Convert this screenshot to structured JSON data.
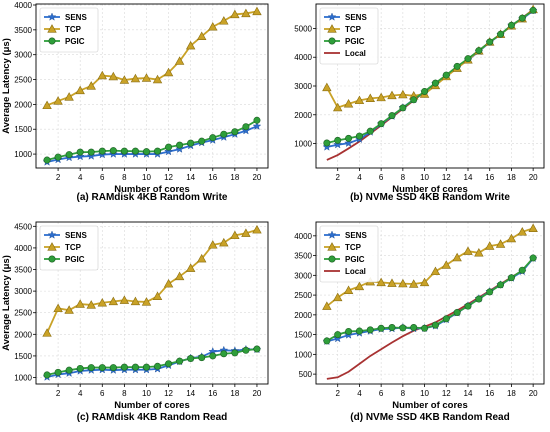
{
  "colors": {
    "SENS": "#2e6fcf",
    "TCP": "#c9a227",
    "PGIC": "#2e9e3a",
    "Local": "#a83232",
    "grid": "#d9d9d9"
  },
  "chart_data": [
    {
      "type": "line",
      "caption": "(a) RAMdisk 4KB Random Write",
      "xlabel": "Number of cores",
      "ylabel": "Average Latency (μs)",
      "x": [
        1,
        2,
        3,
        4,
        5,
        6,
        7,
        8,
        9,
        10,
        11,
        12,
        13,
        14,
        15,
        16,
        17,
        18,
        19,
        20
      ],
      "xticks": [
        2,
        4,
        6,
        8,
        10,
        12,
        14,
        16,
        18,
        20
      ],
      "yticks": [
        1000,
        1500,
        2000,
        2500,
        3000,
        3500,
        4000
      ],
      "xlim": [
        0,
        21
      ],
      "ylim": [
        720,
        4020
      ],
      "grid": true,
      "legend_position": "top-left",
      "series": [
        {
          "name": "SENS",
          "values": [
            840,
            890,
            930,
            950,
            960,
            990,
            1000,
            1000,
            1000,
            1000,
            1000,
            1050,
            1100,
            1170,
            1230,
            1280,
            1340,
            1400,
            1470,
            1560
          ]
        },
        {
          "name": "TCP",
          "values": [
            1980,
            2070,
            2150,
            2280,
            2370,
            2580,
            2560,
            2490,
            2520,
            2530,
            2500,
            2640,
            2870,
            3180,
            3370,
            3560,
            3680,
            3810,
            3830,
            3870
          ]
        },
        {
          "name": "PGIC",
          "values": [
            880,
            940,
            990,
            1040,
            1040,
            1060,
            1070,
            1060,
            1060,
            1050,
            1060,
            1140,
            1180,
            1220,
            1260,
            1330,
            1400,
            1450,
            1550,
            1680
          ]
        }
      ]
    },
    {
      "type": "line",
      "caption": "(b) NVMe SSD 4KB Random Write",
      "xlabel": "Number of cores",
      "ylabel": "",
      "x": [
        1,
        2,
        3,
        4,
        5,
        6,
        7,
        8,
        9,
        10,
        11,
        12,
        13,
        14,
        15,
        16,
        17,
        18,
        19,
        20
      ],
      "xticks": [
        2,
        4,
        6,
        8,
        10,
        12,
        14,
        16,
        18,
        20
      ],
      "yticks": [
        1000,
        2000,
        3000,
        4000,
        5000
      ],
      "xlim": [
        0,
        21
      ],
      "ylim": [
        150,
        5850
      ],
      "grid": true,
      "legend_position": "top-left",
      "series": [
        {
          "name": "SENS",
          "values": [
            880,
            960,
            1010,
            1150,
            1400,
            1680,
            1950,
            2250,
            2530,
            2790,
            3080,
            3330,
            3650,
            3900,
            4200,
            4520,
            4790,
            5110,
            5330,
            5620
          ]
        },
        {
          "name": "TCP",
          "values": [
            2950,
            2250,
            2380,
            2500,
            2570,
            2600,
            2670,
            2700,
            2660,
            2720,
            3020,
            3330,
            3620,
            3910,
            4220,
            4530,
            4800,
            5090,
            5340,
            5660
          ]
        },
        {
          "name": "PGIC",
          "values": [
            1020,
            1110,
            1180,
            1260,
            1430,
            1690,
            1970,
            2240,
            2520,
            2810,
            3100,
            3380,
            3680,
            3950,
            4230,
            4530,
            4800,
            5110,
            5360,
            5630
          ]
        },
        {
          "name": "Local",
          "values": [
            430,
            600,
            830,
            1070,
            1350,
            1630,
            1920,
            2210,
            2500,
            2800,
            3090,
            3370,
            3660,
            3940,
            4230,
            4520,
            4800,
            5090,
            5370,
            5650
          ]
        }
      ]
    },
    {
      "type": "line",
      "caption": "(c) RAMdisk 4KB Random Read",
      "xlabel": "Number of cores",
      "ylabel": "Average Latency (μs)",
      "x": [
        1,
        2,
        3,
        4,
        5,
        6,
        7,
        8,
        9,
        10,
        11,
        12,
        13,
        14,
        15,
        16,
        17,
        18,
        19,
        20
      ],
      "xticks": [
        2,
        4,
        6,
        8,
        10,
        12,
        14,
        16,
        18,
        20
      ],
      "yticks": [
        1000,
        1500,
        2000,
        2500,
        3000,
        3500,
        4000,
        4500
      ],
      "xlim": [
        0,
        21
      ],
      "ylim": [
        850,
        4600
      ],
      "grid": true,
      "legend_position": "top-left",
      "series": [
        {
          "name": "SENS",
          "values": [
            1010,
            1070,
            1100,
            1150,
            1170,
            1180,
            1170,
            1180,
            1180,
            1180,
            1200,
            1280,
            1370,
            1450,
            1480,
            1600,
            1630,
            1620,
            1650,
            1650
          ]
        },
        {
          "name": "TCP",
          "values": [
            2030,
            2600,
            2560,
            2700,
            2680,
            2730,
            2760,
            2790,
            2760,
            2750,
            2880,
            3170,
            3340,
            3530,
            3750,
            4070,
            4120,
            4290,
            4340,
            4420
          ]
        },
        {
          "name": "PGIC",
          "values": [
            1060,
            1120,
            1170,
            1210,
            1230,
            1230,
            1230,
            1240,
            1240,
            1240,
            1260,
            1320,
            1380,
            1440,
            1460,
            1500,
            1550,
            1570,
            1630,
            1660
          ]
        }
      ]
    },
    {
      "type": "line",
      "caption": "(d) NVMe SSD 4KB Random Read",
      "xlabel": "Number of cores",
      "ylabel": "",
      "x": [
        1,
        2,
        3,
        4,
        5,
        6,
        7,
        8,
        9,
        10,
        11,
        12,
        13,
        14,
        15,
        16,
        17,
        18,
        19,
        20
      ],
      "xticks": [
        2,
        4,
        6,
        8,
        10,
        12,
        14,
        16,
        18,
        20
      ],
      "yticks": [
        500,
        1000,
        1500,
        2000,
        2500,
        3000,
        3500,
        4000
      ],
      "xlim": [
        0,
        21
      ],
      "ylim": [
        250,
        4350
      ],
      "grid": true,
      "legend_position": "top-left",
      "series": [
        {
          "name": "SENS",
          "values": [
            1330,
            1400,
            1490,
            1540,
            1590,
            1640,
            1650,
            1680,
            1650,
            1660,
            1720,
            1880,
            2050,
            2230,
            2410,
            2590,
            2760,
            2930,
            3100,
            3430
          ]
        },
        {
          "name": "TCP",
          "values": [
            2220,
            2440,
            2620,
            2720,
            2840,
            2820,
            2800,
            2790,
            2780,
            2820,
            3100,
            3260,
            3450,
            3610,
            3570,
            3740,
            3790,
            3930,
            4100,
            4190
          ]
        },
        {
          "name": "PGIC",
          "values": [
            1340,
            1500,
            1580,
            1590,
            1620,
            1660,
            1680,
            1670,
            1680,
            1660,
            1740,
            1900,
            2060,
            2220,
            2400,
            2580,
            2760,
            2940,
            3130,
            3440
          ]
        },
        {
          "name": "Local",
          "values": [
            380,
            420,
            560,
            760,
            960,
            1130,
            1300,
            1460,
            1600,
            1700,
            1810,
            1960,
            2110,
            2270,
            2440,
            2610,
            2780,
            2950,
            3120,
            3430
          ]
        }
      ]
    }
  ]
}
